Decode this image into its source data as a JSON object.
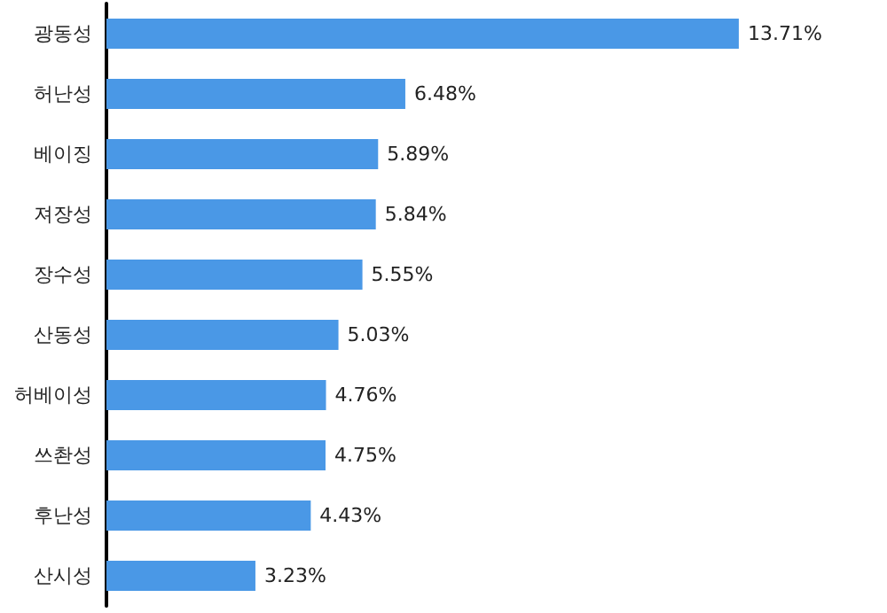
{
  "chart_data": {
    "type": "bar",
    "orientation": "horizontal",
    "categories": [
      "광동성",
      "허난성",
      "베이징",
      "져장성",
      "장수성",
      "산동성",
      "허베이성",
      "쓰촨성",
      "후난성",
      "산시성"
    ],
    "values": [
      13.71,
      6.48,
      5.89,
      5.84,
      5.55,
      5.03,
      4.76,
      4.75,
      4.43,
      3.23
    ],
    "value_labels": [
      "13.71%",
      "6.48%",
      "5.89%",
      "5.84%",
      "5.55%",
      "5.03%",
      "4.76%",
      "4.75%",
      "4.43%",
      "3.23%"
    ],
    "color": "#4a98e6"
  }
}
